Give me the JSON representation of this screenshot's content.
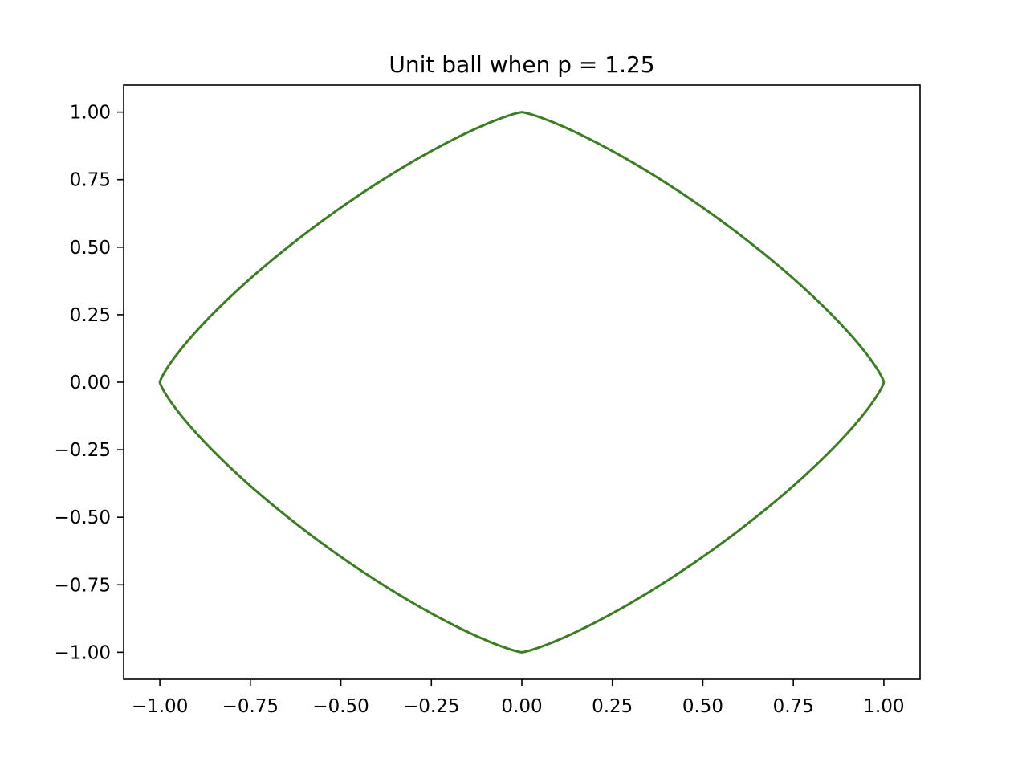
{
  "chart_data": {
    "type": "line",
    "title": "Unit ball when p = 1.25",
    "xlabel": "",
    "ylabel": "",
    "p": 1.25,
    "xlim": [
      -1.1,
      1.1
    ],
    "ylim": [
      -1.1,
      1.1
    ],
    "grid": false,
    "legend": "none",
    "x_ticks": [
      -1.0,
      -0.75,
      -0.5,
      -0.25,
      0.0,
      0.25,
      0.5,
      0.75,
      1.0
    ],
    "x_tick_labels": [
      "−1.00",
      "−0.75",
      "−0.50",
      "−0.25",
      "0.00",
      "0.25",
      "0.50",
      "0.75",
      "1.00"
    ],
    "y_ticks": [
      1.0,
      0.75,
      0.5,
      0.25,
      0.0,
      -0.25,
      -0.5,
      -0.75,
      -1.0
    ],
    "y_tick_labels": [
      "1.00",
      "0.75",
      "0.50",
      "0.25",
      "0.00",
      "−0.25",
      "−0.50",
      "−0.75",
      "−1.00"
    ],
    "series": [
      {
        "color": "#3a7d22",
        "x": [
          1.0,
          0.9,
          0.75,
          0.5,
          0.25,
          0.1,
          0.0,
          -0.1,
          -0.25,
          -0.5,
          -0.75,
          -0.9,
          -1.0,
          -0.9,
          -0.75,
          -0.5,
          -0.25,
          -0.1,
          0.0,
          0.1,
          0.25,
          0.5,
          0.75,
          0.9,
          1.0
        ],
        "y": [
          0.0,
          0.215,
          0.389,
          0.632,
          0.837,
          0.942,
          1.0,
          0.942,
          0.837,
          0.632,
          0.389,
          0.215,
          0.0,
          -0.215,
          -0.389,
          -0.632,
          -0.837,
          -0.942,
          -1.0,
          -0.942,
          -0.837,
          -0.632,
          -0.389,
          -0.215,
          0.0
        ]
      }
    ]
  }
}
